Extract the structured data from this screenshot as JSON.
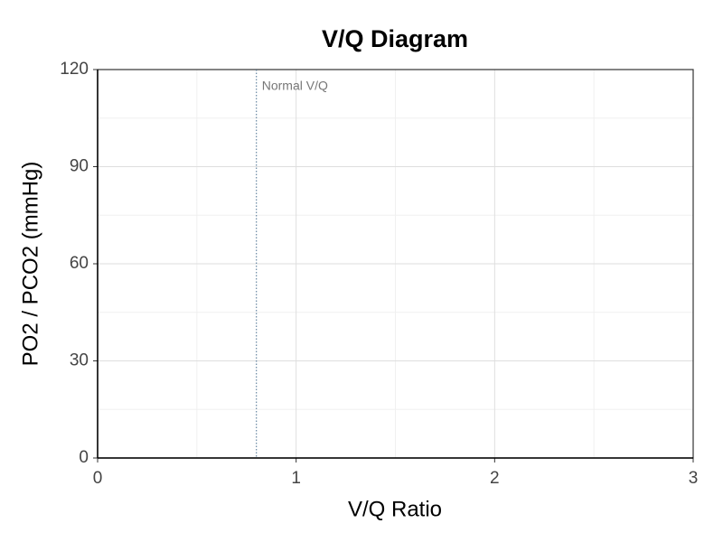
{
  "chart_data": {
    "type": "line",
    "title": "V/Q Diagram",
    "x_label": "V/Q Ratio",
    "y_label": "PO2 / PCO2 (mmHg)",
    "xlim": [
      0,
      3
    ],
    "xticks": [
      0,
      1,
      2,
      3
    ],
    "ylim": [
      0,
      120
    ],
    "yticks": [
      0,
      30,
      60,
      90,
      120
    ],
    "grid": true,
    "minor_grid": true,
    "reference_lines": [
      {
        "x": 0.8,
        "label": "Normal V/Q",
        "color": "#4a6f8f"
      }
    ]
  }
}
